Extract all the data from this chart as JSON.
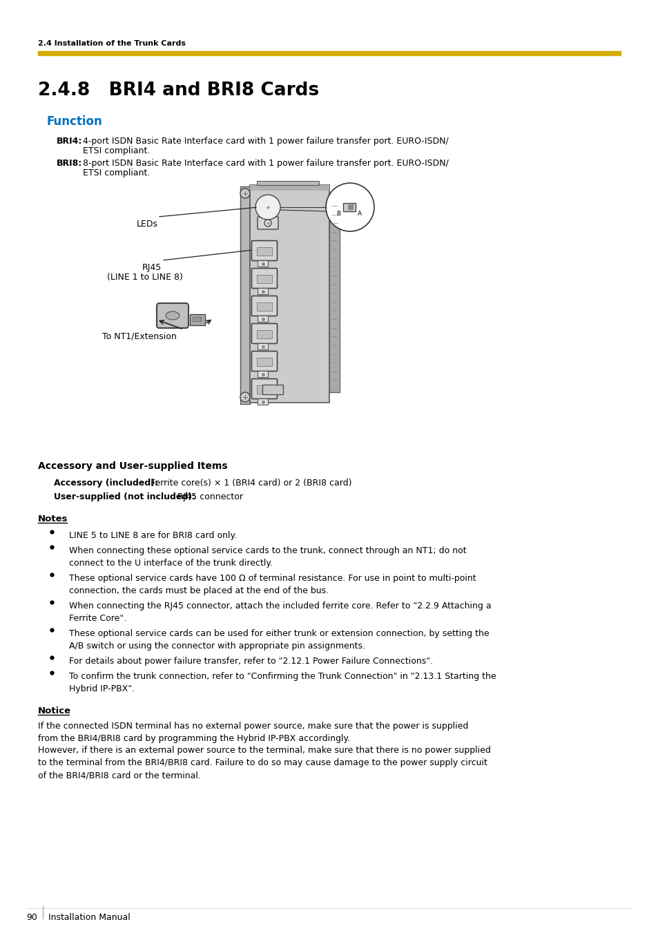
{
  "bg_color": "#ffffff",
  "header_text": "2.4 Installation of the Trunk Cards",
  "header_bar_color": "#D4AC00",
  "section_title": "2.4.8   BRI4 and BRI8 Cards",
  "function_title": "Function",
  "function_color": "#0070C0",
  "bri4_label": "BRI4:",
  "bri4_text1": "4-port ISDN Basic Rate Interface card with 1 power failure transfer port. EURO-ISDN/",
  "bri4_text2": "ETSI compliant.",
  "bri8_label": "BRI8:",
  "bri8_text1": "8-port ISDN Basic Rate Interface card with 1 power failure transfer port. EURO-ISDN/",
  "bri8_text2": "ETSI compliant.",
  "accessory_title": "Accessory and User-supplied Items",
  "accessory_included_label": "Accessory (included):",
  "accessory_included_text": " Ferrite core(s) × 1 (BRI4 card) or 2 (BRI8 card)",
  "user_supplied_label": "User-supplied (not included):",
  "user_supplied_text": " RJ45 connector",
  "notes_title": "Notes",
  "notes": [
    "LINE 5 to LINE 8 are for BRI8 card only.",
    "When connecting these optional service cards to the trunk, connect through an NT1; do not\nconnect to the U interface of the trunk directly.",
    "These optional service cards have 100 Ω of terminal resistance. For use in point to multi-point\nconnection, the cards must be placed at the end of the bus.",
    "When connecting the RJ45 connector, attach the included ferrite core. Refer to \"2.2.9 Attaching a\nFerrite Core\".",
    "These optional service cards can be used for either trunk or extension connection, by setting the\nA/B switch or using the connector with appropriate pin assignments.",
    "For details about power failure transfer, refer to \"2.12.1 Power Failure Connections\".",
    "To confirm the trunk connection, refer to \"Confirming the Trunk Connection\" in \"2.13.1 Starting the\nHybrid IP-PBX\"."
  ],
  "notice_title": "Notice",
  "notice_para1": "If the connected ISDN terminal has no external power source, make sure that the power is supplied\nfrom the BRI4/BRI8 card by programming the Hybrid IP-PBX accordingly.",
  "notice_para2": "However, if there is an external power source to the terminal, make sure that there is no power supplied\nto the terminal from the BRI4/BRI8 card. Failure to do so may cause damage to the power supply circuit\nof the BRI4/BRI8 card or the terminal.",
  "footer_page": "90",
  "footer_text": "Installation Manual",
  "card_color": "#cccccc",
  "card_edge": "#555555",
  "bracket_color": "#bbbbbb",
  "port_color": "#e0e0e0",
  "connector_color": "#aaaaaa"
}
